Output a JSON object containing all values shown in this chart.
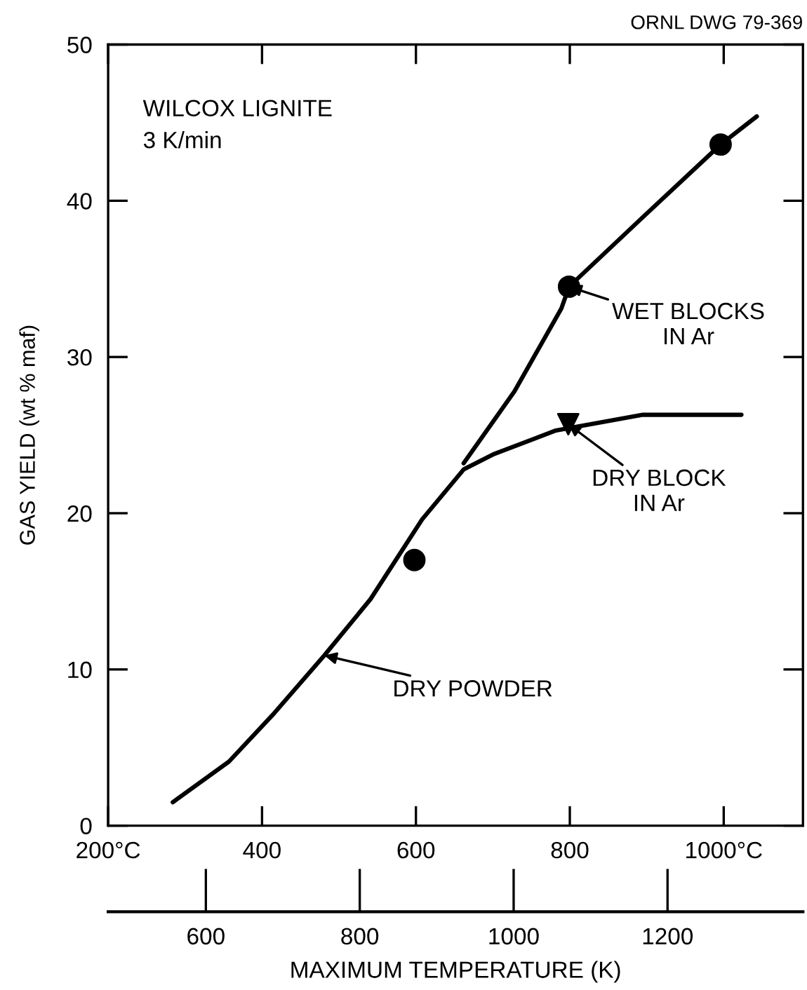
{
  "chart_data": {
    "type": "line",
    "ylabel": "GAS YIELD (wt % maf)",
    "x2label": "MAXIMUM TEMPERATURE (K)",
    "xlim": [
      200,
      1103
    ],
    "xticks": [
      {
        "value": 200,
        "label": "200°C"
      },
      400,
      600,
      800,
      {
        "value": 1000,
        "label": "1000°C"
      }
    ],
    "x2lim": [
      473,
      1376
    ],
    "x2ticks": [
      600,
      800,
      1000,
      1200
    ],
    "ylim": [
      0,
      50
    ],
    "yticks": [
      0,
      10,
      20,
      30,
      40,
      50
    ],
    "grid": false,
    "legend": false,
    "line_style": "solid",
    "series": [
      {
        "color": "#000000",
        "marker": "none",
        "x": [
          284,
          357,
          414,
          481,
          541,
          608,
          662,
          702,
          782,
          895,
          1023
        ],
        "values": [
          1.5,
          4.1,
          7.1,
          10.9,
          14.5,
          19.6,
          22.8,
          23.8,
          25.3,
          26.3,
          26.3
        ]
      },
      {
        "color": "#000000",
        "marker": "none",
        "x": [
          662,
          728,
          789,
          799,
          896,
          996,
          1043
        ],
        "values": [
          23.2,
          27.8,
          33.1,
          34.5,
          39.0,
          43.6,
          45.4
        ]
      },
      {
        "type": "scatter",
        "color": "#000000",
        "marker": "circle",
        "x": [
          598,
          799,
          996
        ],
        "values": [
          17.0,
          34.5,
          43.6
        ]
      },
      {
        "type": "scatter",
        "color": "#000000",
        "marker": "triangle",
        "x": [
          798
        ],
        "values": [
          25.7
        ]
      }
    ],
    "annotations": [
      "ORNL DWG 79-369",
      "WILCOX LIGNITE\n3 K/min",
      {
        "text": "WET BLOCKS\nIN Ar",
        "x": 799,
        "y": 34.5
      },
      {
        "text": "DRY BLOCK\nIN Ar",
        "x": 798,
        "y": 25.7
      },
      {
        "text": "DRY POWDER",
        "x": 481,
        "y": 10.9
      }
    ]
  }
}
